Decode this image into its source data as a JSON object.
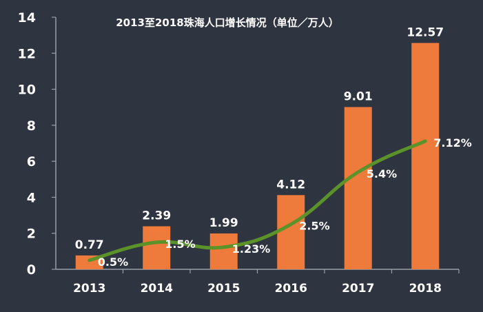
{
  "chart_data": {
    "type": "bar",
    "title": "2013至2018珠海人口增长情况（单位／万人）",
    "xlabel": "",
    "ylabel": "",
    "categories": [
      "2013",
      "2014",
      "2015",
      "2016",
      "2017",
      "2018"
    ],
    "ylim": [
      0,
      14
    ],
    "yticks": [
      0,
      2,
      4,
      6,
      8,
      10,
      12,
      14
    ],
    "grid": false,
    "legend": "none",
    "series": [
      {
        "type": "bar",
        "values": [
          0.77,
          2.39,
          1.99,
          4.12,
          9.01,
          12.57
        ],
        "labels": [
          "0.77",
          "2.39",
          "1.99",
          "4.12",
          "9.01",
          "12.57"
        ],
        "color": "#ee7b3c"
      },
      {
        "type": "line",
        "values": [
          0.5,
          1.5,
          1.23,
          2.5,
          5.4,
          7.12
        ],
        "labels": [
          "0.5%",
          "1.5%",
          "1.23%",
          "2.5%",
          "5.4%",
          "7.12%"
        ],
        "color": "#5b9229",
        "smooth": true
      }
    ],
    "colors": {
      "background": "#2f3540",
      "axis": "#9aa0a8",
      "text": "#ffffff"
    }
  }
}
